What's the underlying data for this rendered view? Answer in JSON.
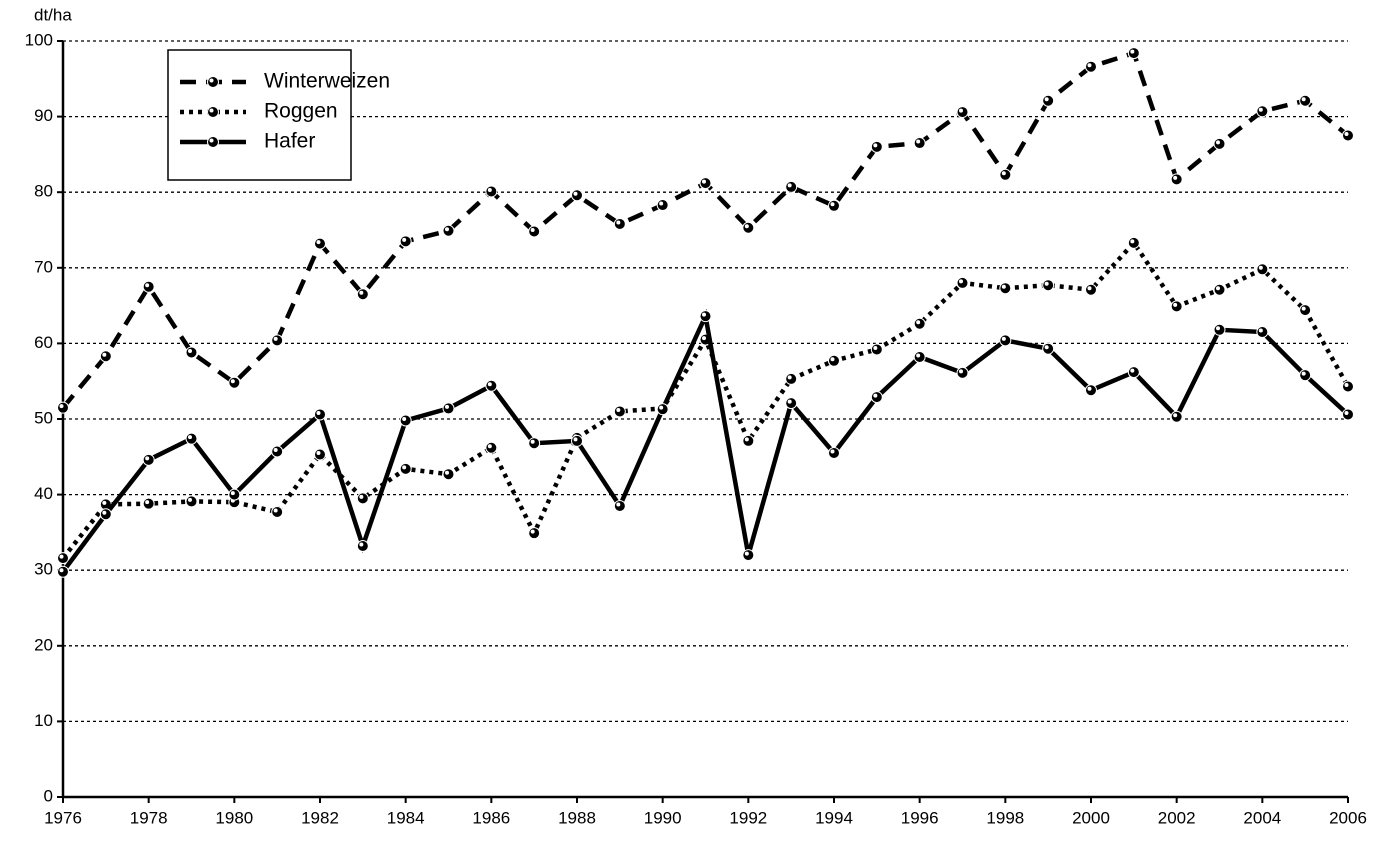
{
  "chart_data": {
    "type": "line",
    "y_label": "dt/ha",
    "x": [
      1976,
      1977,
      1978,
      1979,
      1980,
      1981,
      1982,
      1983,
      1984,
      1985,
      1986,
      1987,
      1988,
      1989,
      1990,
      1991,
      1992,
      1993,
      1994,
      1995,
      1996,
      1997,
      1998,
      1999,
      2000,
      2001,
      2002,
      2003,
      2004,
      2005,
      2006
    ],
    "series": [
      {
        "name": "Winterweizen",
        "color": "#000000",
        "style": "dashed",
        "values": [
          51.5,
          58.3,
          67.5,
          58.8,
          54.8,
          60.4,
          73.2,
          66.5,
          73.5,
          74.9,
          80.1,
          74.8,
          79.6,
          75.8,
          78.3,
          81.2,
          75.3,
          80.7,
          78.2,
          86.0,
          86.5,
          90.6,
          82.3,
          92.1,
          96.6,
          98.4,
          81.7,
          86.4,
          90.7,
          92.1,
          87.5
        ]
      },
      {
        "name": "Roggen",
        "color": "#000000",
        "style": "dotted",
        "values": [
          31.6,
          38.7,
          38.8,
          39.1,
          39.0,
          37.7,
          45.3,
          39.5,
          43.4,
          42.7,
          46.2,
          34.9,
          47.5,
          51.0,
          51.4,
          60.5,
          47.1,
          55.3,
          57.7,
          59.2,
          62.6,
          68.0,
          67.3,
          67.7,
          67.1,
          73.3,
          64.9,
          67.1,
          69.8,
          64.4,
          54.3
        ]
      },
      {
        "name": "Hafer",
        "color": "#000000",
        "style": "solid",
        "values": [
          29.8,
          37.4,
          44.6,
          47.4,
          40.0,
          45.7,
          50.6,
          33.2,
          49.8,
          51.4,
          54.4,
          46.8,
          47.1,
          38.5,
          51.3,
          63.6,
          32.0,
          52.1,
          45.5,
          52.9,
          58.2,
          56.1,
          60.4,
          59.3,
          53.8,
          56.2,
          50.3,
          61.8,
          61.5,
          55.8,
          50.6
        ]
      }
    ],
    "xlim": [
      1976,
      2006
    ],
    "xticks": [
      1976,
      1978,
      1980,
      1982,
      1984,
      1986,
      1988,
      1990,
      1992,
      1994,
      1996,
      1998,
      2000,
      2002,
      2004,
      2006
    ],
    "ylim": [
      0,
      100
    ],
    "yticks": [
      0,
      10,
      20,
      30,
      40,
      50,
      60,
      70,
      80,
      90,
      100
    ],
    "grid": true,
    "legend": "upper left"
  }
}
